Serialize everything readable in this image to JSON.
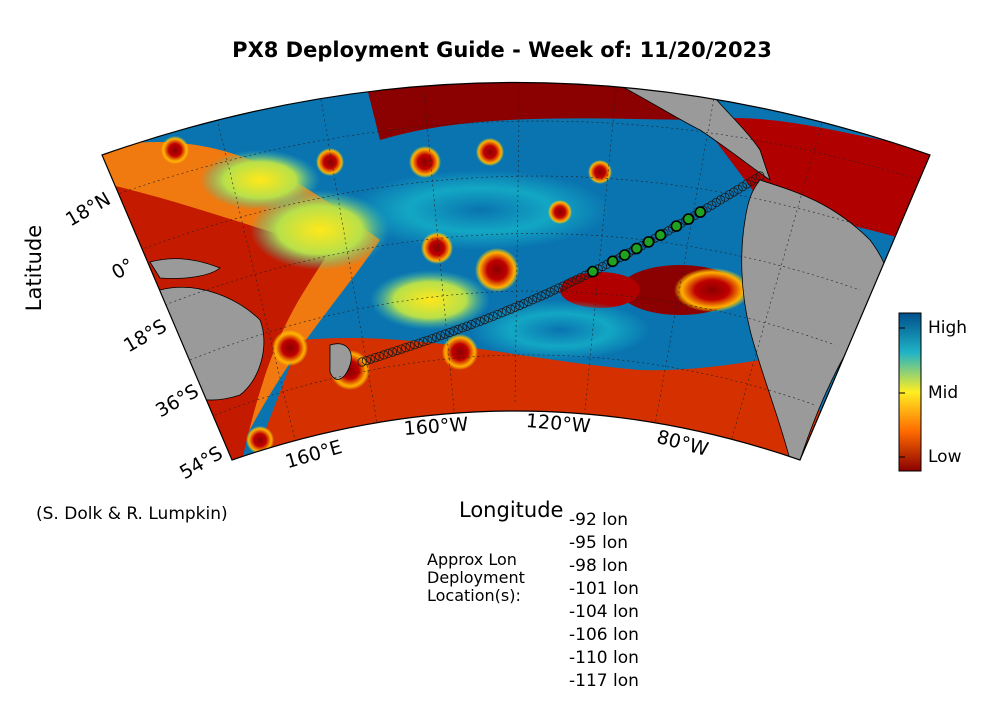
{
  "title": "PX8 Deployment Guide - Week of: 11/20/2023",
  "axes": {
    "ylabel": "Latitude",
    "xlabel": "Longitude"
  },
  "credit": "(S. Dolk & R. Lumpkin)",
  "lat_ticks": [
    "18°N",
    "0°",
    "18°S",
    "36°S",
    "54°S"
  ],
  "lon_ticks": [
    "160°E",
    "160°W",
    "120°W",
    "80°W"
  ],
  "colorbar": {
    "labels": [
      "High",
      "Mid",
      "Low"
    ],
    "colors": [
      "#00508c",
      "#1fb3c6",
      "#ffee22",
      "#ff6a00",
      "#8b0000"
    ]
  },
  "map_colors": {
    "ocean_low": "#8b0000",
    "ocean_high": "#0a74b0",
    "land": "#9a9a9a"
  },
  "deployment": {
    "label_lines": [
      "Approx Lon",
      "Deployment",
      "Location(s):"
    ],
    "locations": [
      "-92 lon",
      "-95 lon",
      "-98 lon",
      "-101 lon",
      "-104 lon",
      "-106 lon",
      "-110 lon",
      "-117 lon"
    ]
  }
}
